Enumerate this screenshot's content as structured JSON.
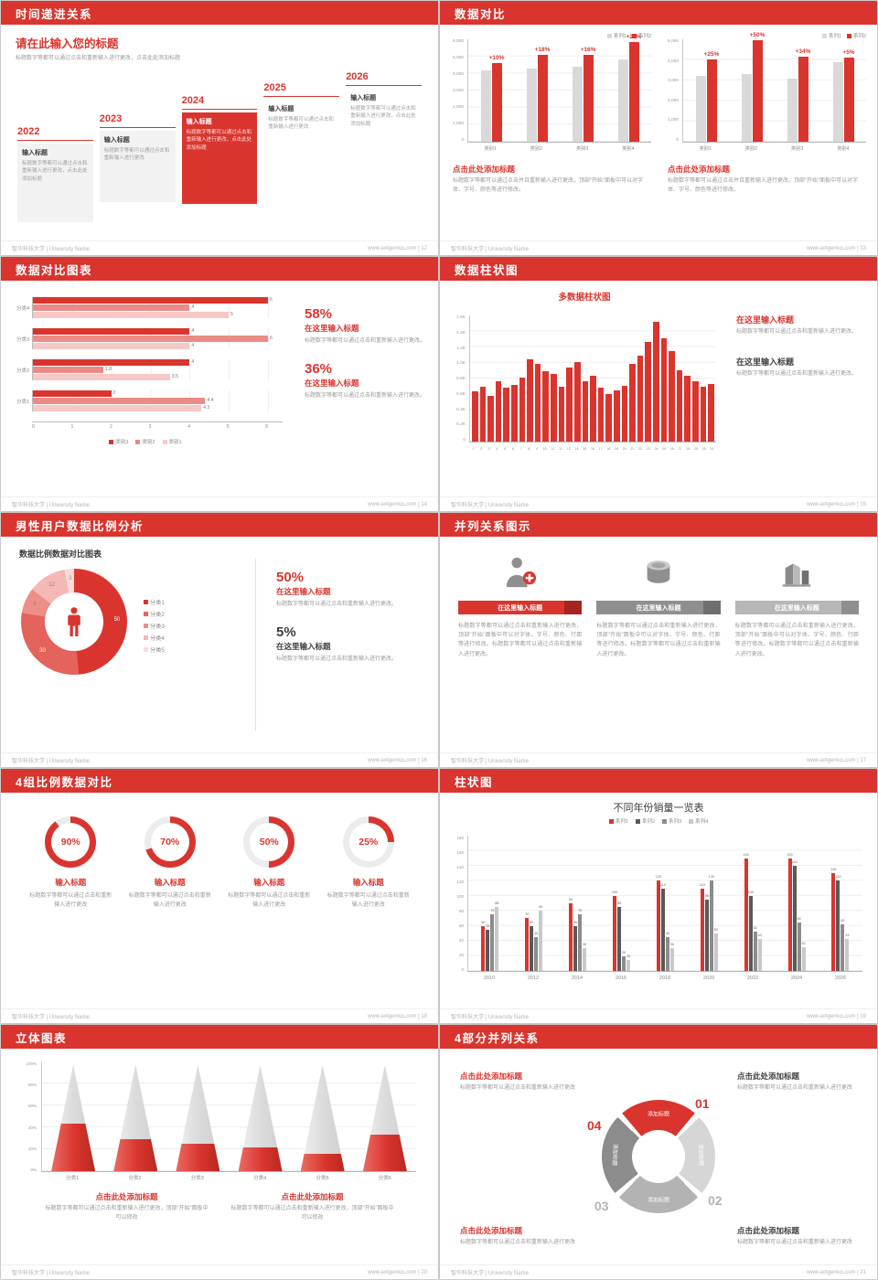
{
  "colors": {
    "accent": "#d9352e",
    "gray_bar": "#d9d9d9",
    "text_gray": "#9a9a9a"
  },
  "footer": {
    "university": "智华科技大学 | University Name",
    "site": "www.aotgenius.com"
  },
  "slides": {
    "s12": {
      "header": "时间递进关系",
      "footer_right": "www.aotgenius.com | 12",
      "title": "请在此输入您的标题",
      "subtitle": "标题数字等都可以通过点击和重新输入进行更改，点击此处添加标题",
      "milestones": [
        {
          "year": "2022",
          "label": "输入标题",
          "text": "标题数字等都可以通过点击和重新输入进行更改，点击此处添加标题",
          "style": "gray"
        },
        {
          "year": "2023",
          "label": "输入标题",
          "text": "标题数字等都可以通过点击和重新输入进行更改",
          "style": "gray"
        },
        {
          "year": "2024",
          "label": "输入标题",
          "text": "标题数字等都可以通过点击和重新输入进行更改，点击此处添加标题",
          "style": "red"
        },
        {
          "year": "2025",
          "label": "输入标题",
          "text": "标题数字等都可以通过点击和重新输入进行更改",
          "style": "plain"
        },
        {
          "year": "2026",
          "label": "输入标题",
          "text": "标题数字等都可以通过点击和重新输入进行更改，点击此处添加标题",
          "style": "plain"
        }
      ]
    },
    "s13": {
      "header": "数据对比",
      "footer_right": "www.aotgenius.com | 13",
      "panels": [
        {
          "legend": [
            {
              "label": "系列1",
              "color": "#d9d9d9"
            },
            {
              "label": "系列2",
              "color": "#d9352e"
            }
          ],
          "yticks": [
            "6,000",
            "5,000",
            "4,000",
            "3,000",
            "2,000",
            "1,000",
            "0"
          ],
          "ymax": 6000,
          "categories": [
            "类别1",
            "类别2",
            "类别3",
            "类别4"
          ],
          "series1": [
            4200,
            4300,
            4400,
            4800
          ],
          "series2": [
            4620,
            5070,
            5100,
            5850
          ],
          "pct": [
            "+10%",
            "+18%",
            "+16%",
            "+22%"
          ],
          "title": "点击此处添加标题",
          "text": "标题数字等都可以通过点击并且重新输入进行更改，顶部“开始”面板中可以对字体、字号、颜色等进行修改。"
        },
        {
          "legend": [
            {
              "label": "系列1",
              "color": "#d9d9d9"
            },
            {
              "label": "系列2",
              "color": "#d9352e"
            }
          ],
          "yticks": [
            "5,000",
            "4,000",
            "3,000",
            "2,000",
            "1,000",
            "0"
          ],
          "ymax": 5000,
          "categories": [
            "类别1",
            "类别2",
            "类别3",
            "类别4"
          ],
          "series1": [
            3200,
            3300,
            3100,
            3900
          ],
          "series2": [
            4000,
            4950,
            4150,
            4100
          ],
          "pct": [
            "+25%",
            "+50%",
            "+34%",
            "+5%"
          ],
          "title": "点击此处添加标题",
          "text": "标题数字等都可以通过点击并且重新输入进行更改，顶部“开始”面板中可以对字体、字号、颜色等进行修改。"
        }
      ]
    },
    "s14": {
      "header": "数据对比图表",
      "footer_right": "www.aotgenius.com | 14",
      "chart": {
        "xticks": [
          "0",
          "1",
          "2",
          "3",
          "4",
          "5",
          "6"
        ],
        "xmax": 6,
        "series_colors": [
          "#d9352e",
          "#ec8b85",
          "#f6c9c6"
        ],
        "groups": [
          {
            "label": "分类4",
            "values": [
              6,
              4,
              5
            ]
          },
          {
            "label": "分类3",
            "values": [
              4,
              6,
              4
            ]
          },
          {
            "label": "分类2",
            "values": [
              4,
              1.8,
              3.5
            ]
          },
          {
            "label": "分类1",
            "values": [
              2,
              4.4,
              4.3
            ]
          }
        ],
        "legend": [
          {
            "label": "类别3",
            "color": "#d9352e"
          },
          {
            "label": "类别2",
            "color": "#ec8b85"
          },
          {
            "label": "类别1",
            "color": "#f6c9c6"
          }
        ]
      },
      "stats": [
        {
          "pct": "58%",
          "title": "在这里输入标题",
          "text": "标题数字等都可以通过点击和重新输入进行更改。"
        },
        {
          "pct": "36%",
          "title": "在这里输入标题",
          "text": "标题数字等都可以通过点击和重新输入进行更改。"
        }
      ]
    },
    "s15": {
      "header": "数据柱状图",
      "footer_right": "www.aotgenius.com | 15",
      "chart": {
        "title": "多数据柱状图",
        "yticks": [
          "1.6K",
          "1.4K",
          "1.2K",
          "1.0K",
          "0.8K",
          "0.6K",
          "0.4K",
          "0.2K",
          "0"
        ],
        "ymax": 1600,
        "xlabels": [
          "1",
          "2",
          "3",
          "4",
          "5",
          "6",
          "7",
          "8",
          "9",
          "10",
          "11",
          "12",
          "13",
          "14",
          "15",
          "16",
          "17",
          "18",
          "19",
          "20",
          "21",
          "22",
          "23",
          "24",
          "25",
          "26",
          "27",
          "28",
          "29",
          "30",
          "31"
        ],
        "values": [
          640,
          700,
          580,
          760,
          690,
          720,
          810,
          1040,
          980,
          890,
          860,
          700,
          940,
          1010,
          760,
          830,
          680,
          600,
          650,
          710,
          980,
          1090,
          1260,
          1520,
          1310,
          1150,
          900,
          830,
          770,
          700,
          730
        ]
      },
      "blocks": [
        {
          "title": "在这里输入标题",
          "text": "标题数字等都可以通过点击和重新输入进行更改。"
        },
        {
          "title": "在这里输入标题",
          "text": "标题数字等都可以通过点击和重新输入进行更改。"
        }
      ]
    },
    "s16": {
      "header": "男性用户数据比例分析",
      "footer_right": "www.aotgenius.com | 16",
      "chart": {
        "title": "数据比例数据对比图表",
        "segments": [
          {
            "label": "分类1",
            "value": 50,
            "color": "#d9352e"
          },
          {
            "label": "分类2",
            "value": 30,
            "color": "#e4635c"
          },
          {
            "label": "分类3",
            "value": 8,
            "color": "#ee8e88"
          },
          {
            "label": "分类4",
            "value": 12,
            "color": "#f5b8b4"
          },
          {
            "label": "分类5",
            "value": 3,
            "color": "#fbdcda"
          }
        ]
      },
      "stats": [
        {
          "pct": "50%",
          "title": "在这里输入标题",
          "text": "标题数字等都可以通过点击和重新输入进行更改。"
        },
        {
          "pct": "5%",
          "title": "在这里输入标题",
          "text": "标题数字等都可以通过点击和重新输入进行更改。"
        }
      ]
    },
    "s17": {
      "header": "并列关系图示",
      "footer_right": "www.aotgenius.com | 17",
      "columns": [
        {
          "icon": "nurse-icon",
          "title": "在这里输入标题",
          "text": "标题数字等都可以通过点击和重新输入进行更改，顶部“开始”面板中可以对字体、字号、颜色、行距等进行修改。标题数字等都可以通过点击和重新输入进行更改。"
        },
        {
          "icon": "database-icon",
          "title": "在这里输入标题",
          "text": "标题数字等都可以通过点击和重新输入进行更改，顶部“开始”面板中可以对字体、字号、颜色、行距等进行修改。标题数字等都可以通过点击和重新输入进行更改。"
        },
        {
          "icon": "building-icon",
          "title": "在这里输入标题",
          "text": "标题数字等都可以通过点击和重新输入进行更改，顶部“开始”面板中可以对字体、字号、颜色、行距等进行修改。标题数字等都可以通过点击和重新输入进行更改。"
        }
      ]
    },
    "s18": {
      "header": "4组比例数据对比",
      "footer_right": "www.aotgenius.com | 18",
      "rings": [
        {
          "pct": 90,
          "label": "90%",
          "title": "输入标题",
          "text": "标题数字等都可以通过点击和重新输入进行更改"
        },
        {
          "pct": 70,
          "label": "70%",
          "title": "输入标题",
          "text": "标题数字等都可以通过点击和重新输入进行更改"
        },
        {
          "pct": 50,
          "label": "50%",
          "title": "输入标题",
          "text": "标题数字等都可以通过点击和重新输入进行更改"
        },
        {
          "pct": 25,
          "label": "25%",
          "title": "输入标题",
          "text": "标题数字等都可以通过点击和重新输入进行更改"
        }
      ]
    },
    "s19": {
      "header": "柱状图",
      "footer_right": "www.aotgenius.com | 19",
      "chart": {
        "title": "不同年份销量一览表",
        "yticks": [
          "180",
          "160",
          "140",
          "120",
          "100",
          "80",
          "60",
          "40",
          "20",
          "0"
        ],
        "ymax": 180,
        "categories": [
          "2010",
          "2012",
          "2014",
          "2016",
          "2018",
          "2020",
          "2022",
          "2024",
          "2026"
        ],
        "series": [
          {
            "name": "系列1",
            "color": "#d9352e",
            "values": [
              60,
              70,
              90,
              100,
              120,
              110,
              150,
              150,
              130
            ]
          },
          {
            "name": "系列2",
            "color": "#595959",
            "values": [
              55,
              60,
              60,
              85,
              110,
              95,
              100,
              140,
              120
            ]
          },
          {
            "name": "系列3",
            "color": "#8c8c8c",
            "values": [
              75,
              45,
              75,
              20,
              45,
              120,
              52,
              65,
              62
            ]
          },
          {
            "name": "系列4",
            "color": "#c9c9c9",
            "values": [
              85,
              80,
              30,
              15,
              30,
              50,
              43,
              32,
              43
            ]
          }
        ]
      }
    },
    "s20": {
      "header": "立体图表",
      "footer_right": "www.aotgenius.com | 20",
      "chart": {
        "yticks": [
          "100%",
          "80%",
          "60%",
          "40%",
          "20%",
          "0%"
        ],
        "categories": [
          "分类1",
          "分类2",
          "分类3",
          "分类4",
          "分类5",
          "分类6"
        ],
        "values": [
          45,
          30,
          26,
          22,
          16,
          34
        ]
      },
      "blocks": [
        {
          "title": "点击此处添加标题",
          "text": "标题数字等都可以通过点击和重新输入进行更改，顶部“开始”面板中可以修改"
        },
        {
          "title": "点击此处添加标题",
          "text": "标题数字等都可以通过点击和重新输入进行更改，顶部“开始”面板中可以修改"
        }
      ]
    },
    "s21": {
      "header": "4部分并列关系",
      "footer_right": "www.aotgenius.com | 21",
      "wheel": {
        "segments": [
          {
            "num": "01",
            "label": "添加标题",
            "color": "#d9352e"
          },
          {
            "num": "02",
            "label": "添加标题",
            "color": "#d6d6d6"
          },
          {
            "num": "03",
            "label": "添加标题",
            "color": "#b3b3b3"
          },
          {
            "num": "04",
            "label": "添加标题",
            "color": "#8c8c8c"
          }
        ]
      },
      "blocks": [
        {
          "title": "点击此处添加标题",
          "text": "标题数字等都可以通过点击和重新输入进行更改"
        },
        {
          "title": "点击此处添加标题",
          "text": "标题数字等都可以通过点击和重新输入进行更改"
        },
        {
          "title": "点击此处添加标题",
          "text": "标题数字等都可以通过点击和重新输入进行更改"
        },
        {
          "title": "点击此处添加标题",
          "text": "标题数字等都可以通过点击和重新输入进行更改"
        }
      ]
    }
  }
}
